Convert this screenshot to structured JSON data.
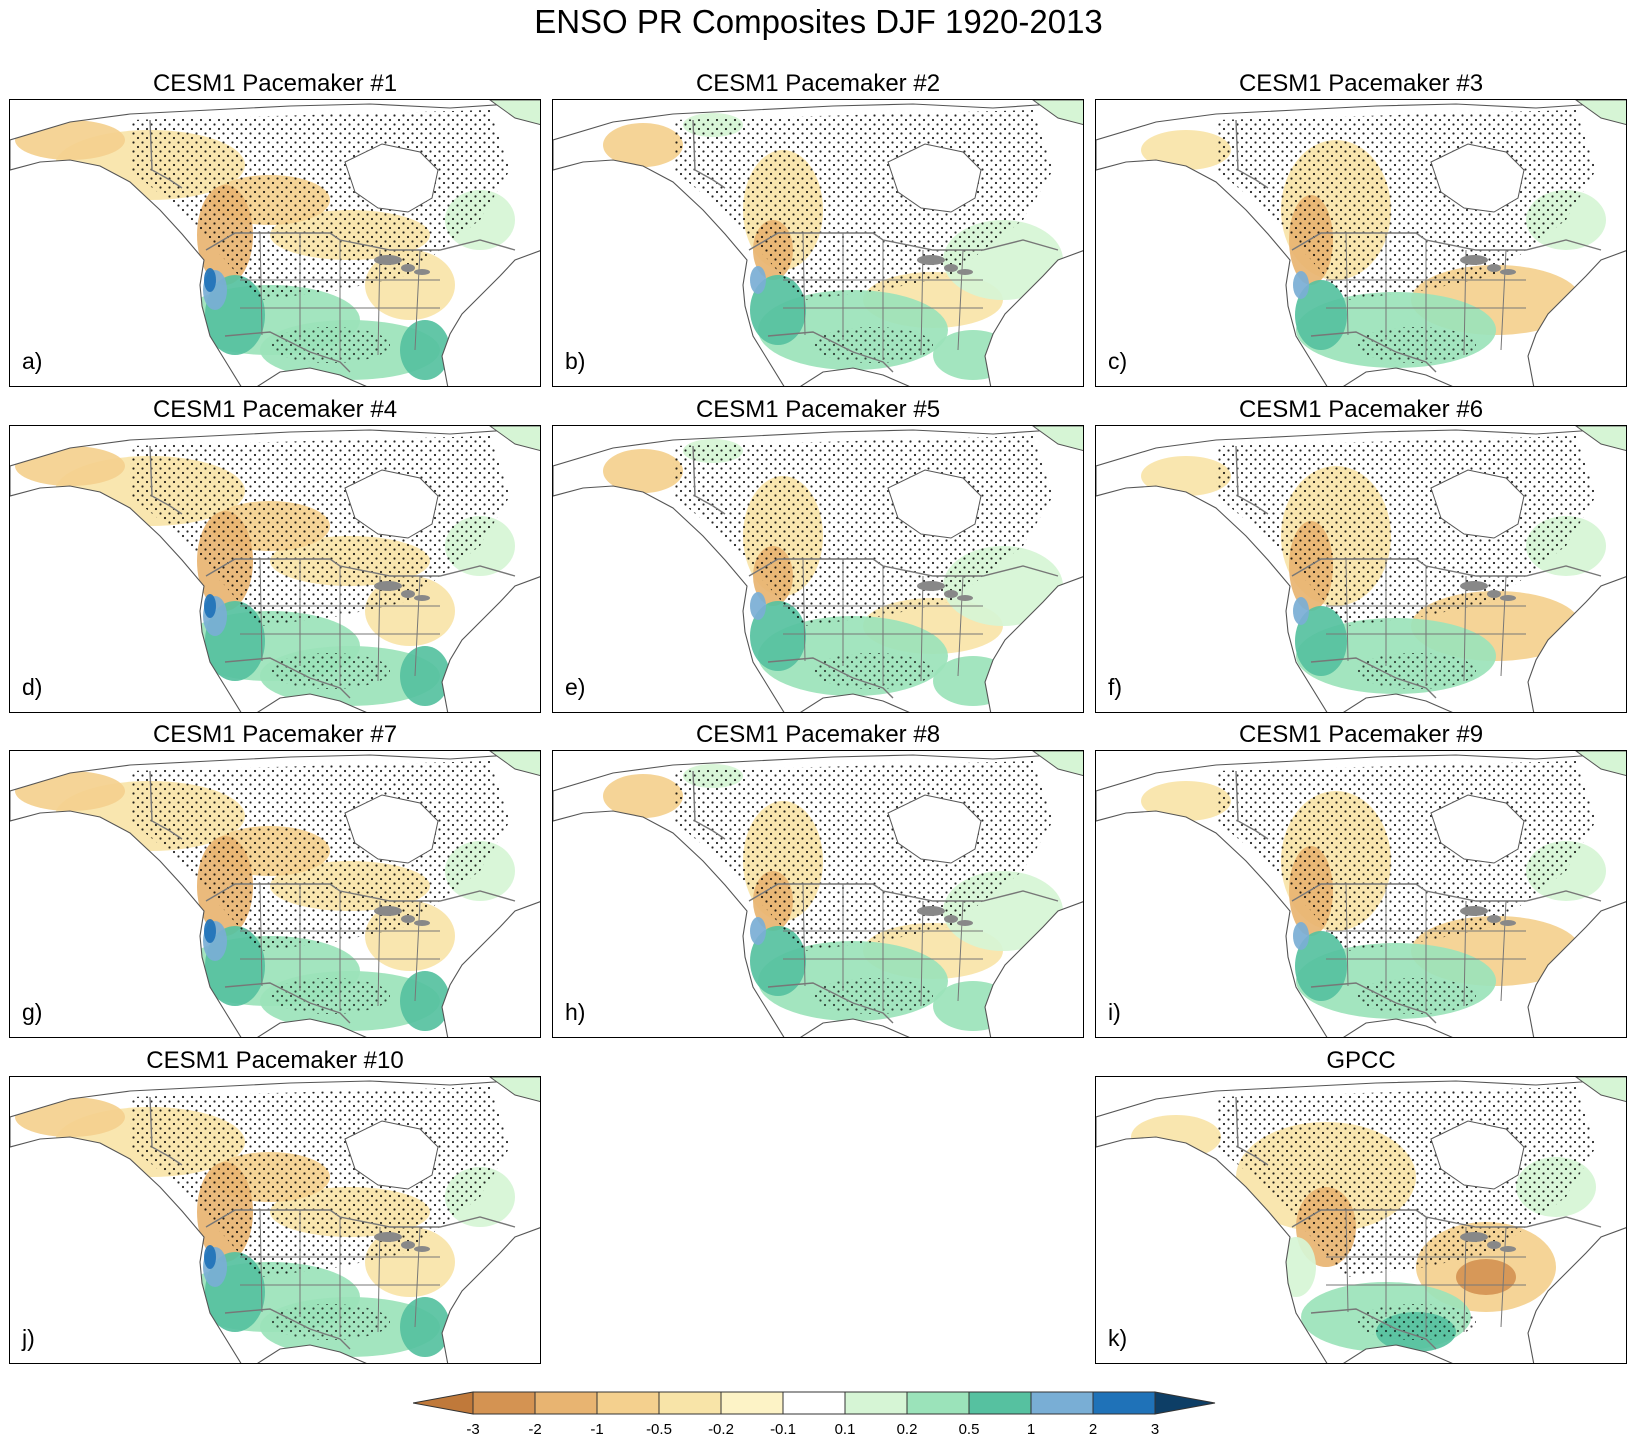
{
  "figure": {
    "title": "ENSO PR Composites DJF 1920-2013"
  },
  "panels": [
    {
      "id": "p1",
      "title": "CESM1 Pacemaker #1",
      "label": "a)",
      "pattern": "m1"
    },
    {
      "id": "p2",
      "title": "CESM1 Pacemaker #2",
      "label": "b)",
      "pattern": "m2"
    },
    {
      "id": "p3",
      "title": "CESM1 Pacemaker #3",
      "label": "c)",
      "pattern": "m3"
    },
    {
      "id": "p4",
      "title": "CESM1 Pacemaker #4",
      "label": "d)",
      "pattern": "m1"
    },
    {
      "id": "p5",
      "title": "CESM1 Pacemaker #5",
      "label": "e)",
      "pattern": "m2"
    },
    {
      "id": "p6",
      "title": "CESM1 Pacemaker #6",
      "label": "f)",
      "pattern": "m3"
    },
    {
      "id": "p7",
      "title": "CESM1 Pacemaker #7",
      "label": "g)",
      "pattern": "m1"
    },
    {
      "id": "p8",
      "title": "CESM1 Pacemaker #8",
      "label": "h)",
      "pattern": "m2"
    },
    {
      "id": "p9",
      "title": "CESM1 Pacemaker #9",
      "label": "i)",
      "pattern": "m3"
    },
    {
      "id": "p10",
      "title": "CESM1 Pacemaker #10",
      "label": "j)",
      "pattern": "m1"
    },
    {
      "id": "p11",
      "title": "GPCC",
      "label": "k)",
      "pattern": "obs"
    }
  ],
  "colorbar": {
    "labels": [
      "-3",
      "-2",
      "-1",
      "-0.5",
      "-0.2",
      "-0.1",
      "0.1",
      "0.2",
      "0.5",
      "1",
      "2",
      "3"
    ],
    "colors": [
      "#c0793a",
      "#d49352",
      "#e8b471",
      "#f4d08e",
      "#f8e4a8",
      "#fdf3c6",
      "#ffffff",
      "#d6f5d5",
      "#9be3ba",
      "#56c1a0",
      "#79aed5",
      "#1f72b8",
      "#0d3e66"
    ]
  }
}
